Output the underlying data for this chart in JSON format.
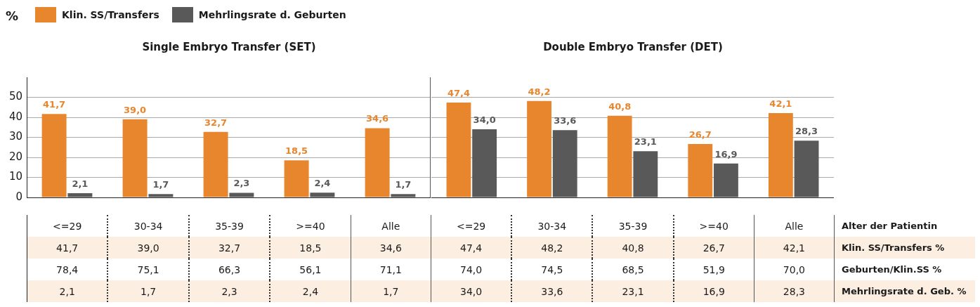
{
  "chart_data": [
    {
      "type": "bar",
      "title": "Single Embryo Transfer (SET)",
      "ylabel": "%",
      "categories": [
        "<=29",
        "30-34",
        "35-39",
        ">=40",
        "Alle"
      ],
      "series": [
        {
          "name": "Klin. SS/Transfers",
          "color": "#e8862e",
          "values": [
            41.7,
            39.0,
            32.7,
            18.5,
            34.6
          ],
          "value_labels": [
            "41,7",
            "39,0",
            "32,7",
            "18,5",
            "34,6"
          ]
        },
        {
          "name": "Mehrlingsrate d. Geburten",
          "color": "#595959",
          "values": [
            2.1,
            1.7,
            2.3,
            2.4,
            1.7
          ],
          "value_labels": [
            "2,1",
            "1,7",
            "2,3",
            "2,4",
            "1,7"
          ]
        }
      ],
      "ylim": [
        0,
        60
      ],
      "yticks": [
        0,
        10,
        20,
        30,
        40,
        50
      ],
      "grid": "y",
      "legend": "top left",
      "annotations": [
        "78,4",
        "75,1",
        "66,3",
        "56,1",
        "71,1"
      ]
    },
    {
      "type": "bar",
      "title": "Double Embryo Transfer (DET)",
      "categories": [
        "<=29",
        "30-34",
        "35-39",
        ">=40",
        "Alle"
      ],
      "series": [
        {
          "color": "#e8862e",
          "values": [
            47.4,
            48.2,
            40.8,
            26.7,
            42.1
          ],
          "value_labels": [
            "47,4",
            "48,2",
            "40,8",
            "26,7",
            "42,1"
          ]
        },
        {
          "color": "#595959",
          "values": [
            34.0,
            33.6,
            23.1,
            16.9,
            28.3
          ],
          "value_labels": [
            "34,0",
            "33,6",
            "23,1",
            "16,9",
            "28,3"
          ]
        }
      ],
      "ylim": [
        0,
        60
      ],
      "yticks": [
        0,
        10,
        20,
        30,
        40,
        50
      ],
      "grid": "y",
      "tick_labels": "x",
      "annotations": [
        "74,0",
        "74,5",
        "68,5",
        "51,9",
        "70,0"
      ]
    },
    {
      "type": "other",
      "annotations": [
        "Alter der Patientin",
        "Klin. SS/Transfers %",
        "Geburten/Klin.SS %",
        "Mehrlingsrate d. Geb. %"
      ]
    }
  ]
}
